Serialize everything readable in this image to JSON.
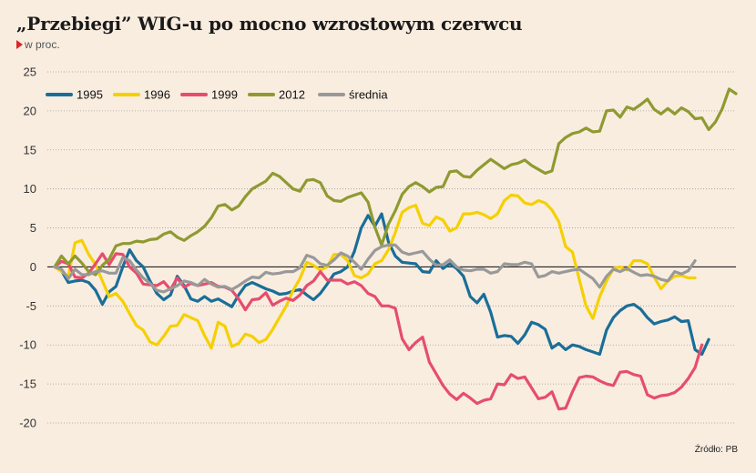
{
  "header": {
    "title": "„Przebiegi” WIG-u po mocno wzrostowym czerwcu",
    "unit": "w proc."
  },
  "footer": {
    "source": "Źródło: PB"
  },
  "colors": {
    "1995": "#1a6e98",
    "1996": "#f5d000",
    "1999": "#e64d6e",
    "2012": "#8f9a30",
    "srednia": "#999999",
    "accent": "#d62828",
    "background": "#f9ede0"
  },
  "chart_data": {
    "type": "line",
    "title": "„Przebiegi” WIG-u po mocno wzrostowym czerwcu",
    "ylabel": "w proc.",
    "ylim": [
      -20,
      25
    ],
    "yticks": [
      25,
      20,
      15,
      10,
      5,
      0,
      -5,
      -10,
      -15,
      -20
    ],
    "grid": true,
    "legend": "top-left",
    "x": [
      0,
      2,
      4,
      6,
      8,
      10,
      12,
      14,
      16,
      18,
      20,
      22,
      24,
      26,
      28,
      30,
      32,
      34,
      36,
      38,
      40,
      42,
      44,
      46,
      48,
      50,
      52,
      54,
      56,
      58,
      60,
      62,
      64,
      66,
      68,
      70,
      72,
      74,
      76,
      78,
      80,
      82,
      84,
      86,
      88,
      90,
      92,
      94,
      96,
      98,
      100,
      102,
      104,
      106,
      108,
      110,
      112,
      114,
      116,
      118,
      120,
      122,
      124,
      126,
      128,
      130,
      132,
      134,
      136,
      138,
      140,
      142,
      144,
      146,
      148,
      150,
      152,
      154,
      156,
      158,
      160,
      162,
      164,
      166,
      168,
      170,
      172,
      174,
      176,
      178,
      180,
      182,
      184,
      186,
      188,
      190,
      192,
      194,
      196,
      198,
      200
    ],
    "series": [
      {
        "name": "1995",
        "values": [
          0,
          -0.5,
          -2,
          -1.8,
          -1.7,
          -2,
          -3,
          -4.8,
          -3.2,
          -2.5,
          0,
          2.2,
          0.8,
          0,
          -1.8,
          -3.4,
          -4.2,
          -3.6,
          -1.2,
          -2.4,
          -4.1,
          -4.4,
          -3.8,
          -4.4,
          -4.1,
          -4.6,
          -5.1,
          -3.6,
          -2.4,
          -2,
          -2.4,
          -2.8,
          -3.1,
          -3.5,
          -3.4,
          -3.1,
          -2.9,
          -3.6,
          -4.2,
          -3.4,
          -2.2,
          -0.9,
          -0.6,
          0,
          2,
          5,
          6.6,
          5.2,
          6.8,
          3.2,
          1.4,
          0.6,
          0.5,
          0.4,
          -0.6,
          -0.7,
          0.8,
          -0.2,
          0.4,
          -0.2,
          -1.2,
          -3.8,
          -4.6,
          -3.5,
          -5.8,
          -9,
          -8.8,
          -8.9,
          -9.8,
          -8.7,
          -7.1,
          -7.4,
          -8,
          -10.4,
          -9.8,
          -10.6,
          -10,
          -10.2,
          -10.6,
          -10.9,
          -11.2,
          -8.1,
          -6.5,
          -5.6,
          -5,
          -4.8,
          -5.4,
          -6.5,
          -7.3,
          -7,
          -6.8,
          -6.4,
          -7,
          -6.9,
          -10.6,
          -11.2,
          -9.3,
          -9,
          -9,
          -9,
          -9
        ],
        "visible_points": 97
      },
      {
        "name": "1996",
        "values": [
          0,
          -0.6,
          -1.2,
          3.1,
          3.4,
          1.6,
          0.3,
          -1.8,
          -3.8,
          -3.4,
          -4.4,
          -6,
          -7.5,
          -8.1,
          -9.6,
          -10,
          -8.9,
          -7.6,
          -7.5,
          -6.1,
          -6.5,
          -6.9,
          -8.8,
          -10.4,
          -7.1,
          -7.6,
          -10.2,
          -9.8,
          -8.6,
          -8.9,
          -9.7,
          -9.3,
          -8,
          -6.5,
          -5,
          -3,
          -1.5,
          0.6,
          0.2,
          -0.4,
          0,
          1.6,
          1.6,
          0.8,
          -1.1,
          -1.4,
          -0.9,
          0.4,
          0.8,
          2.2,
          4.4,
          7,
          7.6,
          7.9,
          5.6,
          5.3,
          6.4,
          6,
          4.6,
          5,
          6.8,
          6.8,
          7,
          6.7,
          6.2,
          6.8,
          8.5,
          9.2,
          9.1,
          8.2,
          8,
          8.5,
          8.2,
          7.3,
          5.8,
          2.6,
          1.9,
          -1.6,
          -5,
          -6.6,
          -3.8,
          -1.8,
          -0.2,
          0,
          -0.4,
          0.8,
          0.8,
          0.4,
          -1.3,
          -2.8,
          -1.8,
          -1.2,
          -1.1,
          -1.4,
          -1.4,
          -1.4,
          -1.4,
          -1.4,
          -1.4,
          -1.4,
          -1.4
        ],
        "visible_points": 95
      },
      {
        "name": "1999",
        "values": [
          0,
          0.7,
          0.4,
          -1.3,
          -1.4,
          -0.8,
          0.4,
          1.7,
          0.3,
          1.7,
          1.6,
          0,
          -0.8,
          -2.2,
          -2.3,
          -2.4,
          -1.9,
          -2.9,
          -1.4,
          -2.6,
          -2.1,
          -2.4,
          -2.2,
          -2,
          -2.5,
          -2.6,
          -3,
          -4.1,
          -5.5,
          -4.2,
          -4.1,
          -3.3,
          -4.9,
          -4.4,
          -4,
          -4.3,
          -3.6,
          -2.4,
          -1.8,
          -0.6,
          -1.7,
          -1.7,
          -1.7,
          -2.2,
          -1.9,
          -2.4,
          -3.4,
          -3.8,
          -5,
          -5,
          -5.3,
          -9.2,
          -10.6,
          -9.7,
          -9,
          -12.2,
          -13.7,
          -15.2,
          -16.3,
          -17,
          -16.2,
          -16.8,
          -17.5,
          -17.1,
          -16.9,
          -15,
          -15.1,
          -13.8,
          -14.3,
          -14.1,
          -15.5,
          -16.9,
          -16.7,
          -16,
          -18.2,
          -18.1,
          -16,
          -14.2,
          -14,
          -14.1,
          -14.6,
          -15,
          -15.2,
          -13.5,
          -13.4,
          -13.8,
          -14,
          -16.4,
          -16.8,
          -16.5,
          -16.4,
          -16.1,
          -15.4,
          -14.3,
          -12.9,
          -10,
          -10,
          -10,
          -10,
          -10,
          -10
        ],
        "visible_points": 96
      },
      {
        "name": "2012",
        "values": [
          0,
          1.4,
          0.4,
          1.4,
          0.5,
          -0.6,
          -1,
          0.2,
          1,
          2.7,
          3,
          3,
          3.3,
          3.2,
          3.5,
          3.6,
          4.2,
          4.5,
          3.8,
          3.4,
          4,
          4.5,
          5.2,
          6.3,
          7.8,
          8,
          7.3,
          7.8,
          9,
          10,
          10.5,
          11,
          12,
          11.6,
          10.8,
          10,
          9.7,
          11.1,
          11.2,
          10.8,
          9.1,
          8.5,
          8.4,
          8.9,
          9.2,
          9.5,
          8.3,
          5.1,
          2.8,
          5.5,
          7.2,
          9.3,
          10.3,
          10.8,
          10.3,
          9.6,
          10.2,
          10.3,
          12.2,
          12.3,
          11.6,
          11.5,
          12.4,
          13.1,
          13.8,
          13.2,
          12.6,
          13.1,
          13.3,
          13.7,
          13,
          12.5,
          12,
          12.3,
          15.8,
          16.6,
          17.1,
          17.3,
          17.8,
          17.3,
          17.4,
          20,
          20.1,
          19.2,
          20.5,
          20.2,
          20.8,
          21.5,
          20.2,
          19.6,
          20.3,
          19.6,
          20.4,
          19.9,
          19,
          19.1,
          17.6,
          18.6,
          20.3,
          22.8,
          22.2
        ],
        "visible_points": 101
      },
      {
        "name": "średnia",
        "values": [
          0,
          -0.3,
          -1.5,
          -0.3,
          -1,
          -1,
          -0.6,
          -0.5,
          -0.8,
          -0.8,
          1.2,
          0.8,
          -0.4,
          -1.4,
          -2.1,
          -3,
          -3.2,
          -2.8,
          -2.4,
          -1.8,
          -2,
          -2.4,
          -1.6,
          -2.2,
          -2.6,
          -2.5,
          -2.9,
          -2.4,
          -1.8,
          -1.3,
          -1.4,
          -0.7,
          -0.9,
          -0.8,
          -0.6,
          -0.6,
          -0.1,
          1.5,
          1.2,
          0.4,
          0.2,
          0.9,
          1.8,
          1.4,
          0.6,
          -0.3,
          1,
          2.1,
          2.6,
          2.8,
          2.8,
          1.9,
          1.6,
          1.8,
          2,
          1,
          0.2,
          0.3,
          0.9,
          0,
          -0.4,
          -0.5,
          -0.3,
          -0.3,
          -0.8,
          -0.6,
          0.4,
          0.3,
          0.3,
          0.6,
          0.4,
          -1.3,
          -1.1,
          -0.6,
          -0.8,
          -0.6,
          -0.4,
          -0.3,
          -0.9,
          -1.5,
          -2.6,
          -1.2,
          -0.3,
          -0.6,
          -0.2,
          -0.7,
          -1.1,
          -1,
          -1.2,
          -1.6,
          -1.8,
          -0.6,
          -0.9,
          -0.5,
          0.8,
          0.8,
          0.8,
          0.8,
          0.8,
          0.8,
          0.8
        ],
        "visible_points": 95
      }
    ]
  }
}
